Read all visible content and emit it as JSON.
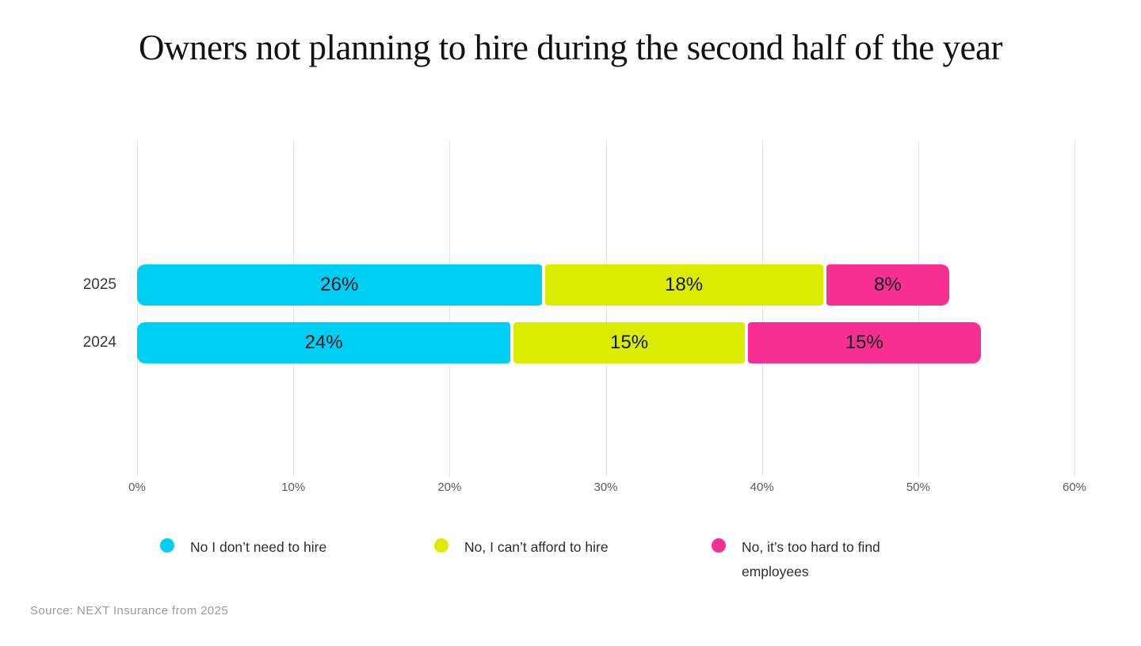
{
  "title": "Owners not planning to hire during the second half of the year",
  "source": "Source: NEXT Insurance from 2025",
  "chart_data": {
    "type": "bar",
    "orientation": "horizontal",
    "stacked": true,
    "title": "Owners not planning to hire during the second half of the year",
    "categories": [
      "2025",
      "2024"
    ],
    "series": [
      {
        "name": "No I don’t need to hire",
        "color": "#00CFF4",
        "values": [
          26,
          24
        ]
      },
      {
        "name": "No, I can’t afford to hire",
        "color": "#DCEC00",
        "values": [
          18,
          15
        ]
      },
      {
        "name": "No, it’s too hard to find employees",
        "color": "#F72F93",
        "values": [
          8,
          15
        ]
      }
    ],
    "totals": [
      52,
      54
    ],
    "value_suffix": "%",
    "xlabel": "",
    "ylabel": "",
    "xlim": [
      0,
      60
    ],
    "x_ticks": [
      "0%",
      "10%",
      "20%",
      "30%",
      "40%",
      "50%",
      "60%"
    ],
    "x_tick_values": [
      0,
      10,
      20,
      30,
      40,
      50,
      60
    ],
    "grid": true,
    "gridline_color": "#e4e4e4",
    "legend_position": "bottom",
    "legend_labels": [
      "No I don’t need to hire",
      "No, I can’t afford to hire",
      "No, it’s too hard to find employees"
    ]
  },
  "colors": {
    "background": "#ffffff",
    "title_text": "#131313",
    "bar_label_text": "#101820",
    "axis_text": "#5c5c5c",
    "category_text": "#383838",
    "legend_text": "#2e2e2e",
    "source_text": "#9b9b9b",
    "series_cyan": "#00CFF4",
    "series_chartreuse": "#DCEC00",
    "series_pink": "#F72F93"
  }
}
